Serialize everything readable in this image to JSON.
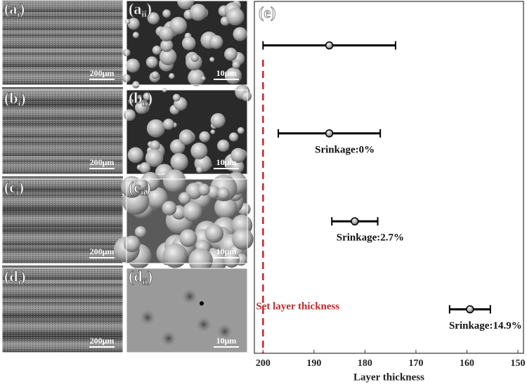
{
  "panels": [
    {
      "main": "(a",
      "sub": "i",
      "close": ")",
      "scale": "200μm"
    },
    {
      "main": "(a",
      "sub": "ii",
      "close": ")",
      "scale": "10μm"
    },
    {
      "main": "(b",
      "sub": "i",
      "close": ")",
      "scale": "200μm"
    },
    {
      "main": "(b",
      "sub": "ii",
      "close": ")",
      "scale": "10μm"
    },
    {
      "main": "(c",
      "sub": "i",
      "close": ")",
      "scale": "200μm"
    },
    {
      "main": "(c",
      "sub": "ii",
      "close": ")",
      "scale": "10μm"
    },
    {
      "main": "(d",
      "sub": "i",
      "close": ")",
      "scale": "200μm"
    },
    {
      "main": "(d",
      "sub": "ii",
      "close": ")",
      "scale": "10μm"
    }
  ],
  "chart_data": {
    "type": "errorbar",
    "panel_label": "(e)",
    "x_label": "Layer thickness",
    "xlim": [
      201.7,
      148.9
    ],
    "xticks": [
      200,
      190,
      180,
      170,
      160,
      150
    ],
    "series": [
      {
        "color": "#000000",
        "values": [
          187,
          187,
          182,
          159.4
        ],
        "errors": [
          13,
          10,
          4.5,
          4
        ]
      }
    ],
    "point_labels": [
      null,
      "Srinkage:0%",
      "Srinkage:2.7%",
      "Srinkage:14.9%"
    ],
    "reference": {
      "value": 200,
      "label": "Set layer thickness",
      "color": "#c0282d"
    }
  }
}
